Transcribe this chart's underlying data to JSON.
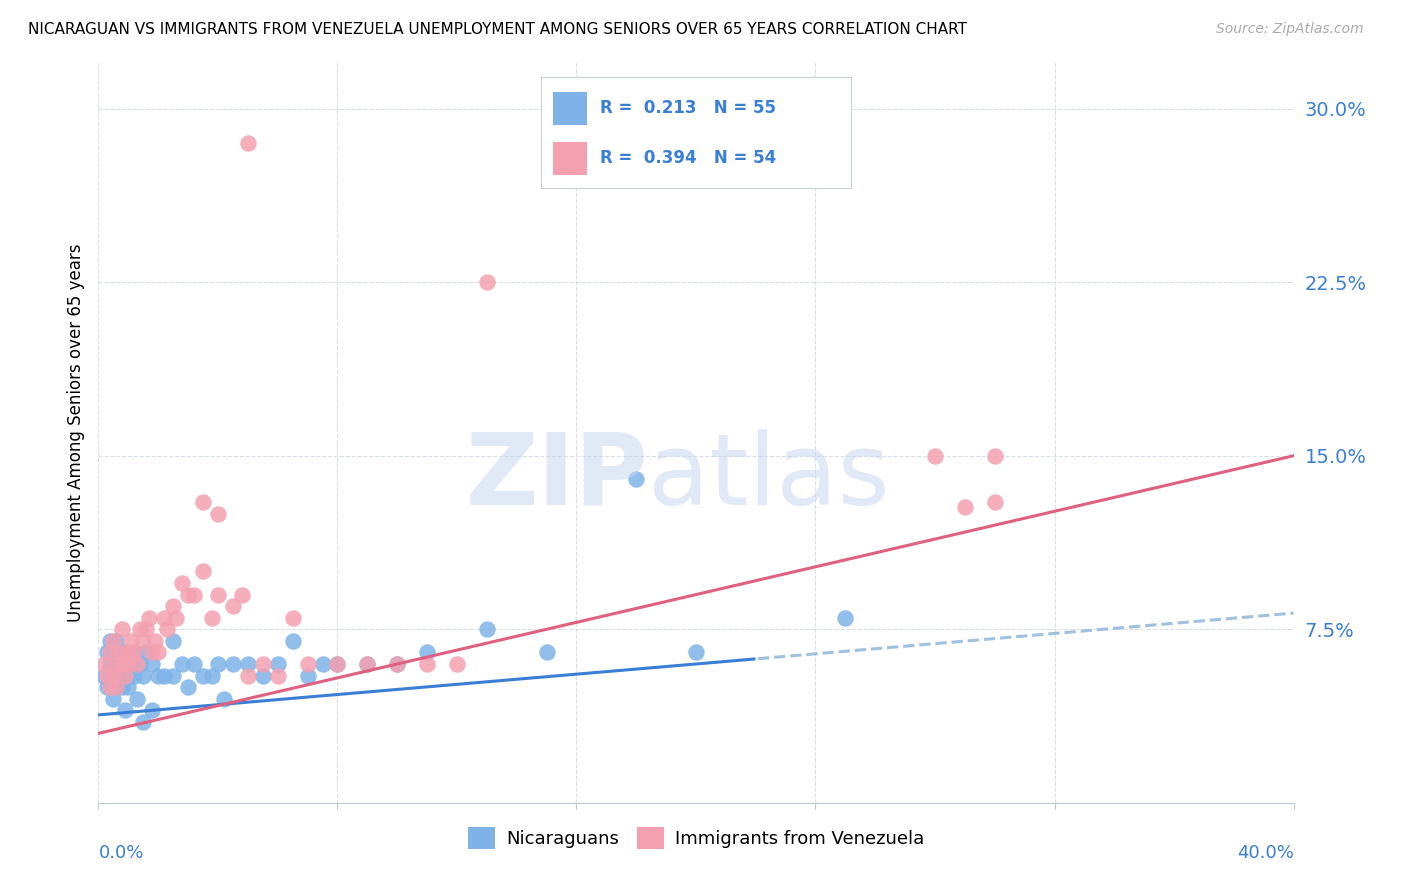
{
  "title": "NICARAGUAN VS IMMIGRANTS FROM VENEZUELA UNEMPLOYMENT AMONG SENIORS OVER 65 YEARS CORRELATION CHART",
  "source": "Source: ZipAtlas.com",
  "ylabel": "Unemployment Among Seniors over 65 years",
  "xlim": [
    0.0,
    0.4
  ],
  "ylim": [
    0.0,
    0.32
  ],
  "ytick_vals": [
    0.0,
    0.075,
    0.15,
    0.225,
    0.3
  ],
  "ytick_labels": [
    "",
    "7.5%",
    "15.0%",
    "22.5%",
    "30.0%"
  ],
  "blue_color": "#7fb3e8",
  "pink_color": "#f4a0b0",
  "line_blue_color": "#3a7fd5",
  "line_pink_color": "#e06080",
  "line_dashed_color": "#a0c0e0",
  "tick_color": "#3a7fd5",
  "legend_r1": "R =  0.213   N = 55",
  "legend_r2": "R =  0.394   N = 54",
  "legend_label1": "Nicaraguans",
  "legend_label2": "Immigrants from Venezuela",
  "watermark_zip_color": "#c8d8ee",
  "watermark_atlas_color": "#c8d8ee",
  "blue_line_y0": 0.038,
  "blue_line_y1": 0.082,
  "pink_line_y0": 0.03,
  "pink_line_y1": 0.15,
  "blue_scatter_x": [
    0.002,
    0.003,
    0.003,
    0.004,
    0.004,
    0.005,
    0.005,
    0.005,
    0.006,
    0.006,
    0.007,
    0.007,
    0.008,
    0.008,
    0.009,
    0.009,
    0.01,
    0.01,
    0.011,
    0.012,
    0.012,
    0.013,
    0.014,
    0.015,
    0.015,
    0.016,
    0.018,
    0.018,
    0.02,
    0.022,
    0.025,
    0.025,
    0.028,
    0.03,
    0.032,
    0.035,
    0.038,
    0.04,
    0.042,
    0.045,
    0.05,
    0.055,
    0.06,
    0.065,
    0.07,
    0.075,
    0.08,
    0.09,
    0.1,
    0.11,
    0.13,
    0.15,
    0.2,
    0.25,
    0.18
  ],
  "blue_scatter_y": [
    0.055,
    0.065,
    0.05,
    0.07,
    0.06,
    0.065,
    0.045,
    0.06,
    0.07,
    0.05,
    0.06,
    0.055,
    0.065,
    0.05,
    0.06,
    0.04,
    0.055,
    0.05,
    0.06,
    0.055,
    0.065,
    0.045,
    0.06,
    0.055,
    0.035,
    0.065,
    0.06,
    0.04,
    0.055,
    0.055,
    0.055,
    0.07,
    0.06,
    0.05,
    0.06,
    0.055,
    0.055,
    0.06,
    0.045,
    0.06,
    0.06,
    0.055,
    0.06,
    0.07,
    0.055,
    0.06,
    0.06,
    0.06,
    0.06,
    0.065,
    0.075,
    0.065,
    0.065,
    0.08,
    0.14
  ],
  "pink_scatter_x": [
    0.002,
    0.003,
    0.004,
    0.004,
    0.005,
    0.005,
    0.006,
    0.006,
    0.007,
    0.008,
    0.008,
    0.009,
    0.01,
    0.01,
    0.011,
    0.012,
    0.013,
    0.014,
    0.015,
    0.016,
    0.017,
    0.018,
    0.019,
    0.02,
    0.022,
    0.023,
    0.025,
    0.026,
    0.028,
    0.03,
    0.032,
    0.035,
    0.038,
    0.04,
    0.045,
    0.048,
    0.05,
    0.055,
    0.06,
    0.065,
    0.07,
    0.08,
    0.09,
    0.1,
    0.11,
    0.12,
    0.28,
    0.3,
    0.3,
    0.29,
    0.05,
    0.13,
    0.035,
    0.04
  ],
  "pink_scatter_y": [
    0.06,
    0.055,
    0.065,
    0.05,
    0.07,
    0.055,
    0.06,
    0.05,
    0.065,
    0.06,
    0.075,
    0.055,
    0.065,
    0.06,
    0.07,
    0.065,
    0.06,
    0.075,
    0.07,
    0.075,
    0.08,
    0.065,
    0.07,
    0.065,
    0.08,
    0.075,
    0.085,
    0.08,
    0.095,
    0.09,
    0.09,
    0.1,
    0.08,
    0.09,
    0.085,
    0.09,
    0.055,
    0.06,
    0.055,
    0.08,
    0.06,
    0.06,
    0.06,
    0.06,
    0.06,
    0.06,
    0.15,
    0.15,
    0.13,
    0.128,
    0.285,
    0.225,
    0.13,
    0.125
  ]
}
